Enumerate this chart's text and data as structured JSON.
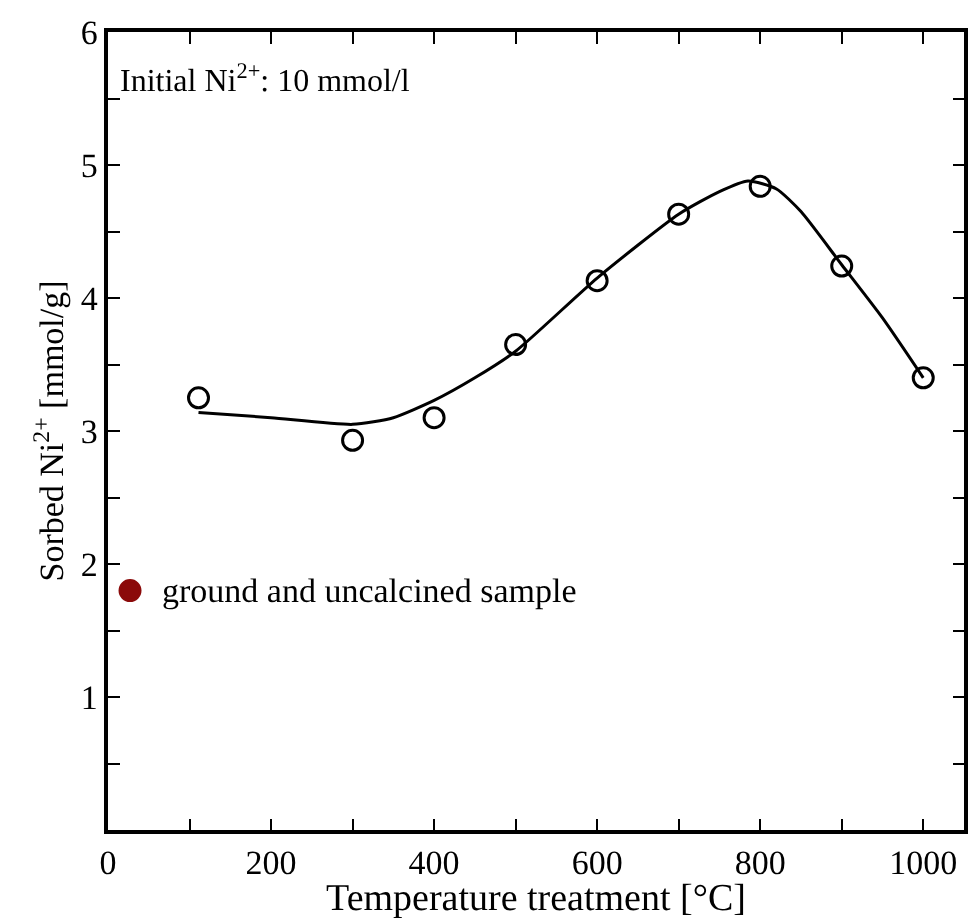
{
  "chart_data": {
    "type": "scatter",
    "xlabel": "Temperature treatment [°C]",
    "ylabel": "Sorbed Ni$^{2+}$ [mmol/g]",
    "annotations": [
      "Initial Ni$^{2+}$: 10 mmol/l"
    ],
    "xlim": [
      0,
      1050
    ],
    "ylim": [
      0,
      6
    ],
    "xticks": [
      0,
      {
        "value": 100,
        "label": null
      },
      200,
      {
        "value": 300,
        "label": null
      },
      400,
      {
        "value": 500,
        "label": null
      },
      600,
      {
        "value": 700,
        "label": null
      },
      800,
      {
        "value": 900,
        "label": null
      },
      1000
    ],
    "yticks": [
      {
        "value": 0.5,
        "label": null
      },
      1,
      {
        "value": 1.5,
        "label": null
      },
      2,
      {
        "value": 2.5,
        "label": null
      },
      3,
      {
        "value": 3.5,
        "label": null
      },
      4,
      {
        "value": 4.5,
        "label": null
      },
      5,
      {
        "value": 5.5,
        "label": null
      },
      6
    ],
    "legend": false,
    "series": [
      {
        "marker": "circle",
        "color": "#000000",
        "x": [
          111,
          300,
          400,
          500,
          600,
          700,
          800,
          900,
          1000
        ],
        "values": [
          3.25,
          2.93,
          3.1,
          3.65,
          4.13,
          4.63,
          4.84,
          4.24,
          3.4
        ]
      },
      {
        "type": "line",
        "marker": "none",
        "line_style": "solid",
        "color": "#000000",
        "x": [
          111,
          200,
          300,
          350,
          400,
          450,
          500,
          600,
          700,
          750,
          785,
          820,
          850,
          900,
          950,
          1000
        ],
        "values": [
          3.14,
          3.1,
          3.05,
          3.1,
          3.23,
          3.4,
          3.6,
          4.15,
          4.63,
          4.8,
          4.88,
          4.82,
          4.65,
          4.25,
          3.85,
          3.4
        ]
      },
      {
        "marker": "circle",
        "name": "ground and uncalcined sample",
        "color": "#8b0a0a",
        "x": [
          27
        ],
        "values": [
          1.8
        ]
      }
    ]
  }
}
